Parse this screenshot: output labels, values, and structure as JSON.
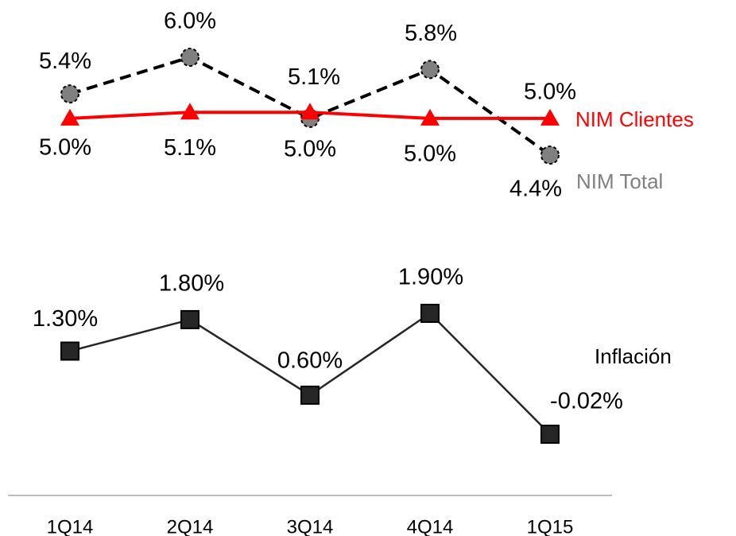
{
  "chart_data": {
    "type": "line",
    "categories": [
      "1Q14",
      "2Q14",
      "3Q14",
      "4Q14",
      "1Q15"
    ],
    "series": [
      {
        "name": "NIM Total",
        "color": "#808080",
        "line_color": "#000000",
        "line_style": "dashed",
        "marker": "circle",
        "values": [
          5.4,
          6.0,
          5.0,
          5.8,
          4.4
        ],
        "value_labels": [
          "5.4%",
          "6.0%",
          "5.0%",
          "5.8%",
          "4.4%"
        ]
      },
      {
        "name": "NIM Clientes",
        "color": "#ff0000",
        "line_color": "#ff0000",
        "line_style": "solid",
        "marker": "triangle",
        "values": [
          5.0,
          5.1,
          5.1,
          5.0,
          5.0
        ],
        "value_labels": [
          "5.0%",
          "5.1%",
          "5.1%",
          "5.0%",
          "5.0%"
        ]
      },
      {
        "name": "Inflación",
        "color": "#262626",
        "line_color": "#262626",
        "line_style": "solid",
        "marker": "square",
        "axis": "y2",
        "values": [
          1.3,
          1.8,
          0.6,
          1.9,
          -0.02
        ],
        "value_labels": [
          "1.30%",
          "1.80%",
          "0.60%",
          "1.90%",
          "-0.02%"
        ]
      }
    ]
  }
}
